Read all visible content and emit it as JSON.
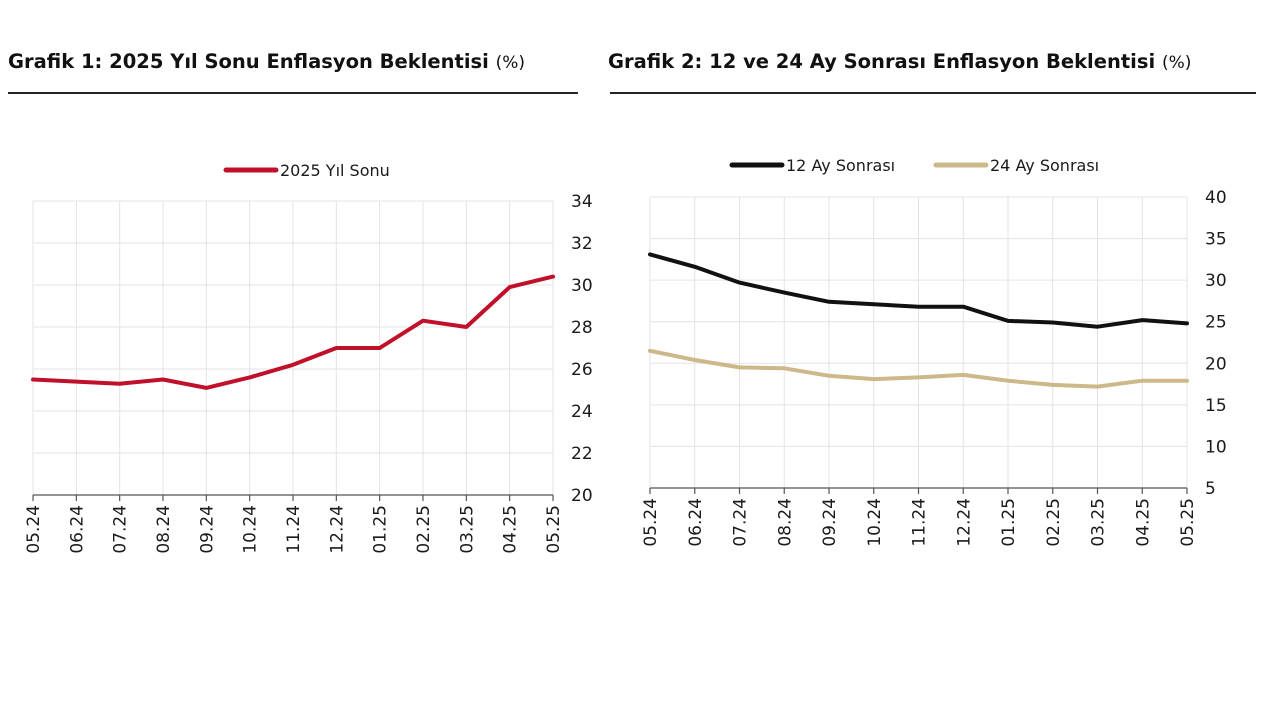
{
  "chart_data": [
    {
      "type": "line",
      "title": "Grafik 1: 2025 Yıl Sonu Enflasyon Beklentisi",
      "title_unit": "(%)",
      "categories": [
        "05.24",
        "06.24",
        "07.24",
        "08.24",
        "09.24",
        "10.24",
        "11.24",
        "12.24",
        "01.25",
        "02.25",
        "03.25",
        "04.25",
        "05.25"
      ],
      "series": [
        {
          "name": "2025 Yıl Sonu",
          "color": "#c0102a",
          "values": [
            25.5,
            25.4,
            25.3,
            25.5,
            25.1,
            25.6,
            26.2,
            27.0,
            27.0,
            28.3,
            28.0,
            29.9,
            30.4
          ]
        }
      ],
      "ylim": [
        20,
        34
      ],
      "yticks": [
        20,
        22,
        24,
        26,
        28,
        30,
        32,
        34
      ],
      "y_axis_side": "right",
      "grid": true,
      "legend": "top"
    },
    {
      "type": "line",
      "title": "Grafik 2: 12 ve 24 Ay Sonrası Enflasyon Beklentisi",
      "title_unit": "(%)",
      "categories": [
        "05.24",
        "06.24",
        "07.24",
        "08.24",
        "09.24",
        "10.24",
        "11.24",
        "12.24",
        "01.25",
        "02.25",
        "03.25",
        "04.25",
        "05.25"
      ],
      "series": [
        {
          "name": "12 Ay Sonrası",
          "color": "#111111",
          "values": [
            33.1,
            31.6,
            29.7,
            28.5,
            27.4,
            27.1,
            26.8,
            26.8,
            25.1,
            24.9,
            24.4,
            25.2,
            24.8
          ]
        },
        {
          "name": "24 Ay Sonrası",
          "color": "#cdb88a",
          "values": [
            21.5,
            20.4,
            19.5,
            19.4,
            18.5,
            18.1,
            18.3,
            18.6,
            17.9,
            17.4,
            17.2,
            17.9,
            17.9
          ]
        }
      ],
      "ylim": [
        5,
        40
      ],
      "yticks": [
        5,
        10,
        15,
        20,
        25,
        30,
        35,
        40
      ],
      "y_axis_side": "right",
      "grid": true,
      "legend": "top"
    }
  ]
}
